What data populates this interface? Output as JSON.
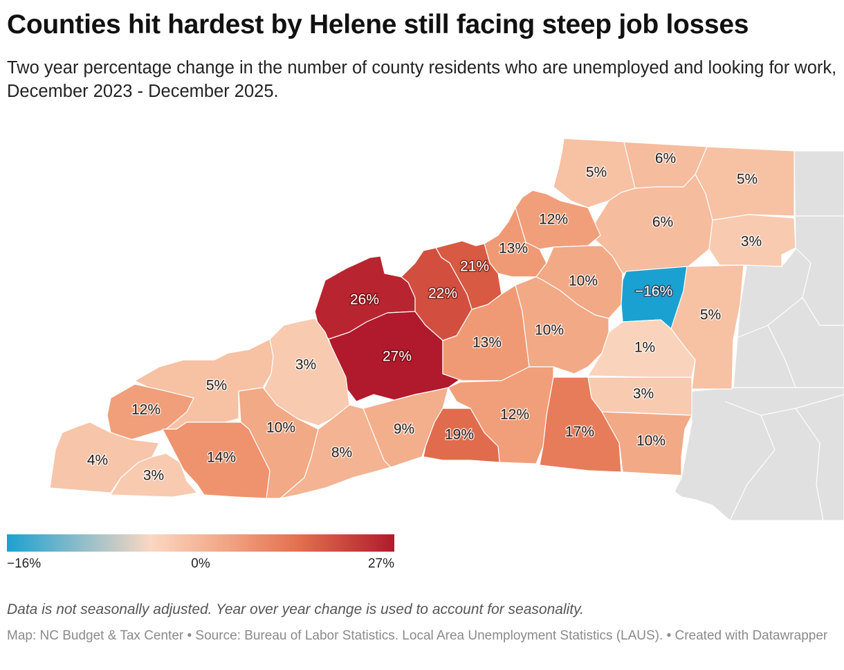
{
  "title": "Counties hit hardest by Helene still facing steep job losses",
  "subtitle": "Two year percentage change in the number of county residents who are unemployed and looking for work, December 2023 - December 2025.",
  "legend": {
    "min_label": "−16%",
    "mid_label": "0%",
    "max_label": "27%",
    "min": -16,
    "max": 27
  },
  "colors": {
    "negative": "#1ba1d1",
    "neutral": "#fbd7c2",
    "max": "#b11a2c",
    "background_county": "#e0e0e0"
  },
  "map": {
    "counties": [
      {
        "value": 5,
        "label": "5%"
      },
      {
        "value": 6,
        "label": "6%"
      },
      {
        "value": 5,
        "label": "5%"
      },
      {
        "value": 6,
        "label": "6%"
      },
      {
        "value": 3,
        "label": "3%"
      },
      {
        "value": 12,
        "label": "12%"
      },
      {
        "value": 13,
        "label": "13%"
      },
      {
        "value": 21,
        "label": "21%"
      },
      {
        "value": 10,
        "label": "10%"
      },
      {
        "value": -16,
        "label": "−16%"
      },
      {
        "value": 26,
        "label": "26%"
      },
      {
        "value": 22,
        "label": "22%"
      },
      {
        "value": 5,
        "label": "5%"
      },
      {
        "value": 27,
        "label": "27%"
      },
      {
        "value": 13,
        "label": "13%"
      },
      {
        "value": 10,
        "label": "10%"
      },
      {
        "value": 1,
        "label": "1%"
      },
      {
        "value": 3,
        "label": "3%"
      },
      {
        "value": 5,
        "label": "5%"
      },
      {
        "value": 3,
        "label": "3%"
      },
      {
        "value": 12,
        "label": "12%"
      },
      {
        "value": 10,
        "label": "10%"
      },
      {
        "value": 9,
        "label": "9%"
      },
      {
        "value": 12,
        "label": "12%"
      },
      {
        "value": 19,
        "label": "19%"
      },
      {
        "value": 17,
        "label": "17%"
      },
      {
        "value": 10,
        "label": "10%"
      },
      {
        "value": 14,
        "label": "14%"
      },
      {
        "value": 8,
        "label": "8%"
      },
      {
        "value": 4,
        "label": "4%"
      },
      {
        "value": 3,
        "label": "3%"
      }
    ]
  },
  "note": "Data is not seasonally adjusted. Year over year change is used to account for seasonality.",
  "source": "Map: NC Budget & Tax Center • Source: Bureau of Labor Statistics. Local Area Unemployment Statistics (LAUS). • Created with Datawrapper"
}
